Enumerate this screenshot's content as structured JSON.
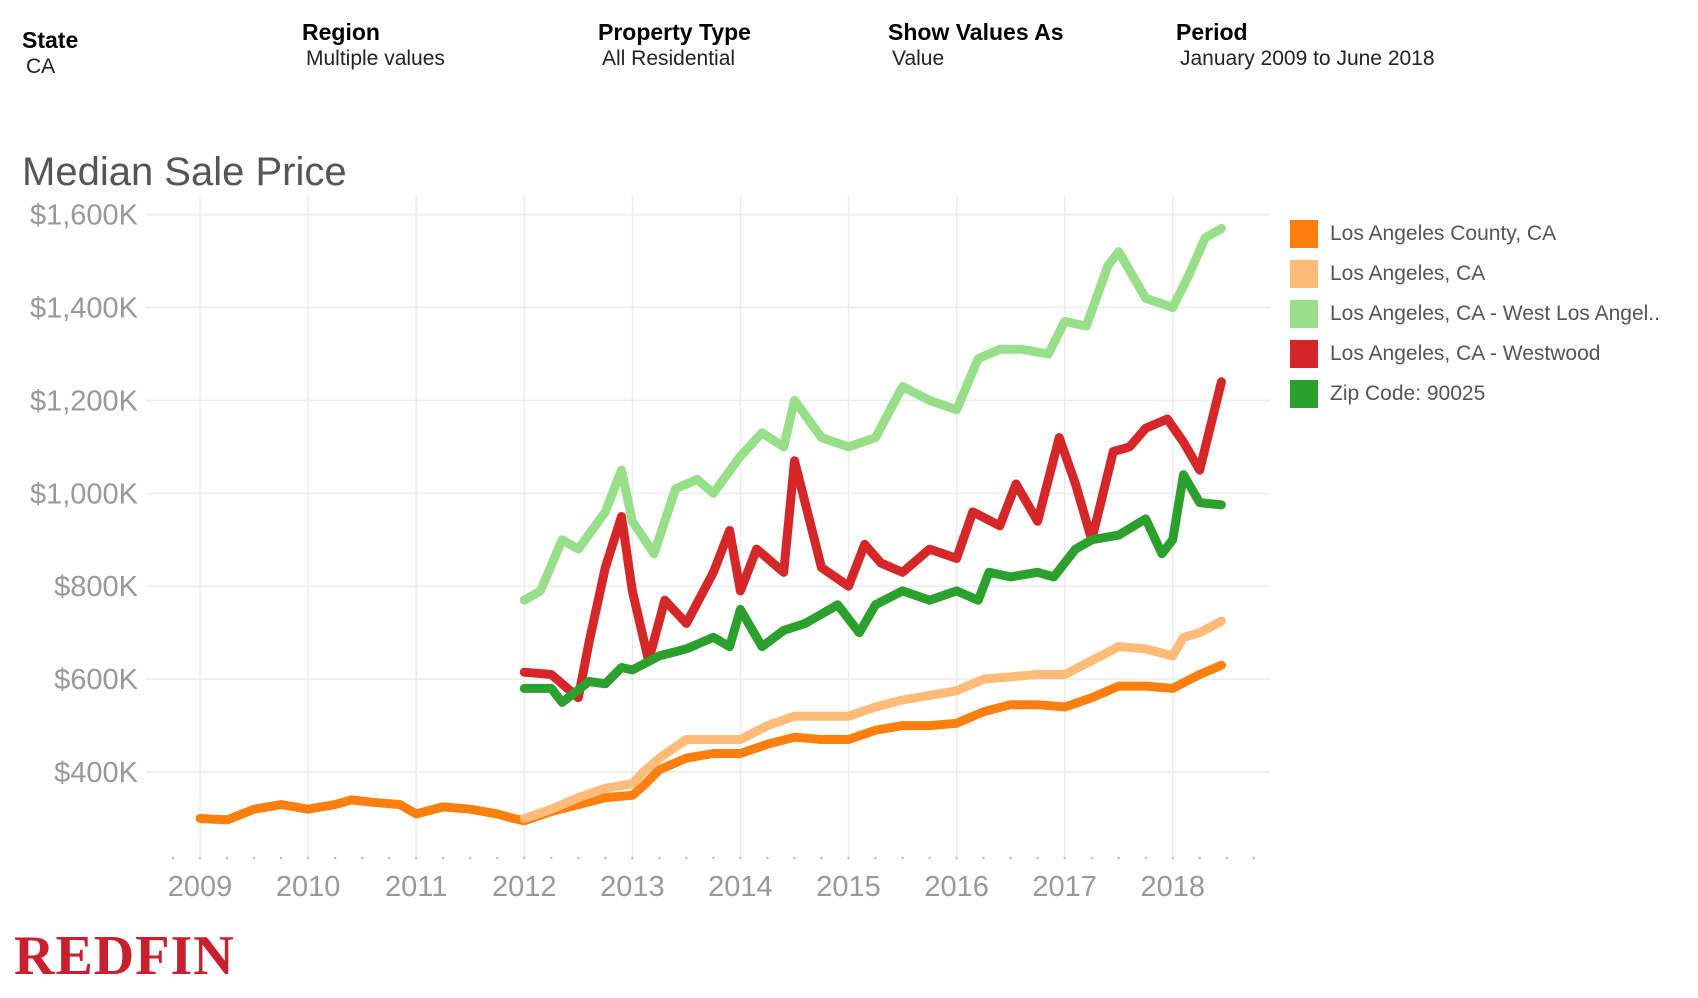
{
  "filters": [
    {
      "label": "State",
      "value": "CA"
    },
    {
      "label": "Region",
      "value": "Multiple values"
    },
    {
      "label": "Property Type",
      "value": "All Residential"
    },
    {
      "label": "Show Values As",
      "value": "Value"
    },
    {
      "label": "Period",
      "value": "January 2009 to June 2018"
    }
  ],
  "logo_text": "REDFIN",
  "chart_data": {
    "type": "line",
    "title": "Median Sale Price",
    "xlabel": "",
    "ylabel": "",
    "x_ticks": [
      "2009",
      "2010",
      "2011",
      "2012",
      "2013",
      "2014",
      "2015",
      "2016",
      "2017",
      "2018"
    ],
    "y_ticks": [
      "$400K",
      "$600K",
      "$800K",
      "$1,000K",
      "$1,200K",
      "$1,400K",
      "$1,600K"
    ],
    "x_range": [
      2008.5,
      2018.9
    ],
    "ylim": [
      215,
      1640
    ],
    "grid": true,
    "legend_position": "right",
    "series": [
      {
        "name": "Los Angeles County, CA",
        "color": "#ff7f0e",
        "x": [
          2009.0,
          2009.25,
          2009.5,
          2009.75,
          2010.0,
          2010.25,
          2010.4,
          2010.6,
          2010.85,
          2011.0,
          2011.25,
          2011.5,
          2011.75,
          2011.9,
          2012.0,
          2012.25,
          2012.5,
          2012.75,
          2013.0,
          2013.1,
          2013.25,
          2013.5,
          2013.75,
          2014.0,
          2014.25,
          2014.5,
          2014.75,
          2015.0,
          2015.25,
          2015.5,
          2015.75,
          2016.0,
          2016.25,
          2016.5,
          2016.75,
          2017.0,
          2017.25,
          2017.5,
          2017.75,
          2018.0,
          2018.25,
          2018.45
        ],
        "y": [
          300,
          297,
          320,
          330,
          320,
          330,
          340,
          335,
          330,
          310,
          325,
          320,
          310,
          300,
          295,
          315,
          330,
          345,
          350,
          370,
          405,
          430,
          440,
          440,
          460,
          475,
          470,
          470,
          490,
          500,
          500,
          505,
          530,
          545,
          545,
          540,
          560,
          585,
          585,
          580,
          610,
          630
        ]
      },
      {
        "name": "Los Angeles, CA",
        "color": "#ffbb78",
        "x": [
          2012.0,
          2012.25,
          2012.5,
          2012.75,
          2013.0,
          2013.1,
          2013.25,
          2013.5,
          2013.75,
          2014.0,
          2014.25,
          2014.5,
          2014.75,
          2015.0,
          2015.25,
          2015.5,
          2015.75,
          2016.0,
          2016.25,
          2016.5,
          2016.75,
          2017.0,
          2017.25,
          2017.5,
          2017.75,
          2018.0,
          2018.1,
          2018.25,
          2018.45
        ],
        "y": [
          300,
          320,
          345,
          365,
          375,
          400,
          430,
          470,
          470,
          470,
          500,
          520,
          520,
          520,
          540,
          555,
          565,
          575,
          600,
          605,
          610,
          610,
          640,
          670,
          665,
          650,
          690,
          700,
          725
        ]
      },
      {
        "name": "Los Angeles, CA - West Los Angel..",
        "color": "#98df8a",
        "x": [
          2012.0,
          2012.15,
          2012.35,
          2012.5,
          2012.75,
          2012.9,
          2013.0,
          2013.2,
          2013.4,
          2013.6,
          2013.75,
          2014.0,
          2014.2,
          2014.4,
          2014.5,
          2014.75,
          2015.0,
          2015.25,
          2015.5,
          2015.75,
          2016.0,
          2016.2,
          2016.4,
          2016.6,
          2016.85,
          2017.0,
          2017.2,
          2017.4,
          2017.5,
          2017.75,
          2018.0,
          2018.15,
          2018.3,
          2018.45
        ],
        "y": [
          770,
          790,
          900,
          880,
          960,
          1050,
          940,
          870,
          1010,
          1030,
          1000,
          1080,
          1130,
          1100,
          1200,
          1120,
          1100,
          1120,
          1230,
          1200,
          1180,
          1290,
          1310,
          1310,
          1300,
          1370,
          1360,
          1490,
          1520,
          1420,
          1400,
          1470,
          1550,
          1570
        ]
      },
      {
        "name": "Los Angeles, CA - Westwood",
        "color": "#d62728",
        "x": [
          2012.0,
          2012.25,
          2012.5,
          2012.6,
          2012.75,
          2012.9,
          2013.0,
          2013.15,
          2013.3,
          2013.5,
          2013.75,
          2013.9,
          2014.0,
          2014.15,
          2014.4,
          2014.5,
          2014.75,
          2015.0,
          2015.15,
          2015.3,
          2015.5,
          2015.75,
          2016.0,
          2016.15,
          2016.4,
          2016.55,
          2016.75,
          2016.95,
          2017.1,
          2017.25,
          2017.45,
          2017.6,
          2017.75,
          2017.95,
          2018.1,
          2018.25,
          2018.45
        ],
        "y": [
          615,
          610,
          560,
          680,
          840,
          950,
          790,
          640,
          770,
          720,
          830,
          920,
          790,
          880,
          830,
          1070,
          840,
          800,
          890,
          850,
          830,
          880,
          860,
          960,
          930,
          1020,
          940,
          1120,
          1020,
          900,
          1090,
          1100,
          1140,
          1160,
          1110,
          1050,
          1240
        ]
      },
      {
        "name": "Zip Code: 90025",
        "color": "#2ca02c",
        "x": [
          2012.0,
          2012.25,
          2012.35,
          2012.6,
          2012.75,
          2012.9,
          2013.0,
          2013.25,
          2013.5,
          2013.75,
          2013.9,
          2014.0,
          2014.2,
          2014.4,
          2014.6,
          2014.75,
          2014.9,
          2015.1,
          2015.25,
          2015.5,
          2015.75,
          2016.0,
          2016.2,
          2016.3,
          2016.5,
          2016.75,
          2016.9,
          2017.1,
          2017.25,
          2017.5,
          2017.75,
          2017.9,
          2018.0,
          2018.1,
          2018.25,
          2018.45
        ],
        "y": [
          580,
          580,
          550,
          595,
          590,
          625,
          620,
          650,
          665,
          690,
          670,
          750,
          670,
          705,
          720,
          740,
          760,
          700,
          760,
          790,
          770,
          790,
          770,
          830,
          820,
          830,
          820,
          880,
          900,
          910,
          945,
          870,
          900,
          1040,
          980,
          975
        ]
      }
    ]
  }
}
